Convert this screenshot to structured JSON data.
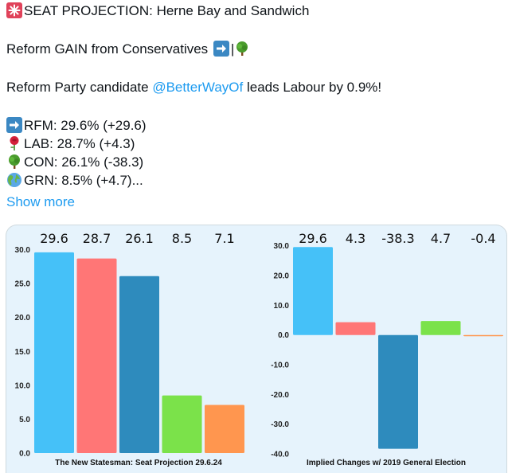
{
  "post": {
    "headline": "SEAT PROJECTION: Herne Bay and Sandwich",
    "gain_line": "Reform GAIN from Conservatives",
    "lead_prefix": "Reform Party candidate ",
    "mention": "@BetterWayOf",
    "lead_suffix": " leads Labour by 0.9%!",
    "results": [
      {
        "icon": "arrow-right-icon",
        "text": "RFM: 29.6% (+29.6)"
      },
      {
        "icon": "rose-icon",
        "text": "LAB: 28.7% (+4.3)"
      },
      {
        "icon": "tree-icon",
        "text": "CON: 26.1% (-38.3)"
      },
      {
        "icon": "globe-icon",
        "text": "GRN: 8.5% (+4.7)..."
      }
    ],
    "show_more": "Show more"
  },
  "colors": {
    "RFM": "#45c1f8",
    "LAB": "#ff7676",
    "CON": "#2e8bbd",
    "GRN": "#7be24a",
    "OTH": "#ff964f",
    "link": "#1d9bf0"
  },
  "chart_data": [
    {
      "type": "bar",
      "title": "The New Statesman: Seat Projection 29.6.24",
      "values": [
        29.6,
        28.7,
        26.1,
        8.5,
        7.1
      ],
      "value_labels": [
        "29.6",
        "28.7",
        "26.1",
        "8.5",
        "7.1"
      ],
      "colors": [
        "#45c1f8",
        "#ff7676",
        "#2e8bbd",
        "#7be24a",
        "#ff964f"
      ],
      "ylim": [
        0,
        31
      ],
      "yticks": [
        "0.0",
        "5.0",
        "10.0",
        "15.0",
        "20.0",
        "25.0",
        "30.0"
      ],
      "grid": false
    },
    {
      "type": "bar",
      "title": "Implied Changes w/ 2019 General Election",
      "values": [
        29.6,
        4.3,
        -38.3,
        4.7,
        -0.4
      ],
      "value_labels": [
        "29.6",
        "4.3",
        "-38.3",
        "4.7",
        "-0.4"
      ],
      "colors": [
        "#45c1f8",
        "#ff7676",
        "#2e8bbd",
        "#7be24a",
        "#ff964f"
      ],
      "ylim": [
        -40,
        31
      ],
      "yticks": [
        "-40.0",
        "-30.0",
        "-20.0",
        "-10.0",
        "0.0",
        "10.0",
        "20.0",
        "30.0"
      ],
      "grid": false
    }
  ]
}
